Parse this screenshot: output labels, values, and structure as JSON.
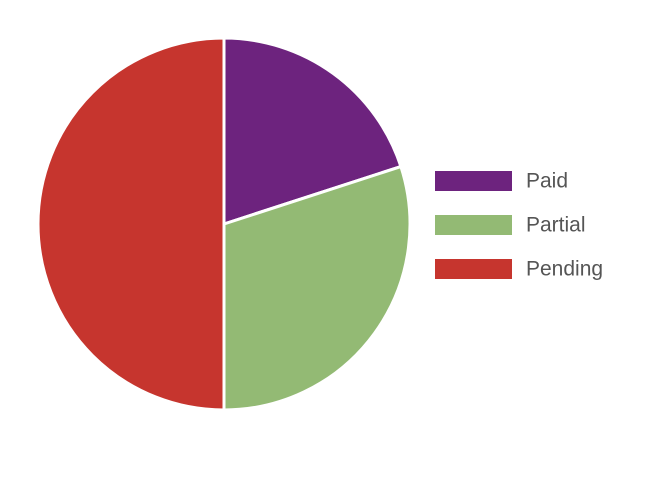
{
  "chart_data": {
    "type": "pie",
    "categories": [
      "Paid",
      "Partial",
      "Pending"
    ],
    "values": [
      20,
      30,
      50
    ],
    "colors": [
      "#6d237e",
      "#93ba74",
      "#c6352e"
    ],
    "legend_position": "right",
    "start_angle": "top",
    "direction": "clockwise"
  }
}
